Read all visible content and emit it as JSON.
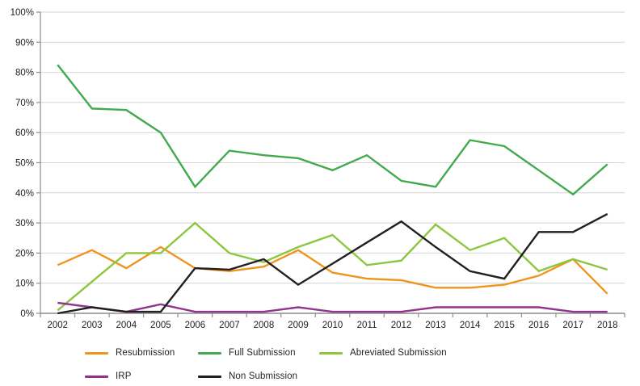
{
  "chart_data": {
    "type": "line",
    "title": "",
    "xlabel": "",
    "ylabel": "",
    "grid": true,
    "legend_position": "bottom",
    "categories": [
      "2002",
      "2003",
      "2004",
      "2005",
      "2006",
      "2007",
      "2008",
      "2009",
      "2010",
      "2011",
      "2012",
      "2013",
      "2014",
      "2015",
      "2016",
      "2017",
      "2018"
    ],
    "y_axis": {
      "min": 0,
      "max": 100,
      "step": 10,
      "format": "percent"
    },
    "y_ticks": [
      "0%",
      "10%",
      "20%",
      "30%",
      "40%",
      "50%",
      "60%",
      "70%",
      "80%",
      "90%",
      "100%"
    ],
    "series": [
      {
        "name": "Resubmission",
        "color": "#F0941E",
        "values": [
          16,
          21,
          15,
          22,
          15,
          14,
          15.5,
          21,
          13.5,
          11.5,
          11,
          8.5,
          8.5,
          9.5,
          12.5,
          18,
          6.5
        ]
      },
      {
        "name": "Full Submission",
        "color": "#43A94E",
        "values": [
          82.5,
          68,
          67.5,
          60,
          42,
          54,
          52.5,
          51.5,
          47.5,
          52.5,
          44,
          42,
          57.5,
          55.5,
          47.5,
          39.5,
          49.5
        ]
      },
      {
        "name": "Abreviated Submission",
        "color": "#8DC63F",
        "values": [
          1,
          10.5,
          20,
          20,
          30,
          20,
          17,
          22,
          26,
          16,
          17.5,
          29.5,
          21,
          25,
          14,
          18,
          14.5
        ]
      },
      {
        "name": "IRP",
        "color": "#92338E",
        "values": [
          3.5,
          2,
          0.5,
          3,
          0.5,
          0.5,
          0.5,
          2,
          0.5,
          0.5,
          0.5,
          2,
          2,
          2,
          2,
          0.5,
          0.5
        ]
      },
      {
        "name": "Non Submission",
        "color": "#231F20",
        "values": [
          0,
          2,
          0.5,
          0.5,
          15,
          14.5,
          18,
          9.5,
          16.5,
          23.5,
          30.5,
          22,
          14,
          11.5,
          27,
          27,
          33
        ]
      }
    ],
    "style": {
      "gridline_color": "#D4D4D4",
      "axis_color": "#8C8C8C",
      "tick_label_color": "#1F1F1F"
    }
  }
}
